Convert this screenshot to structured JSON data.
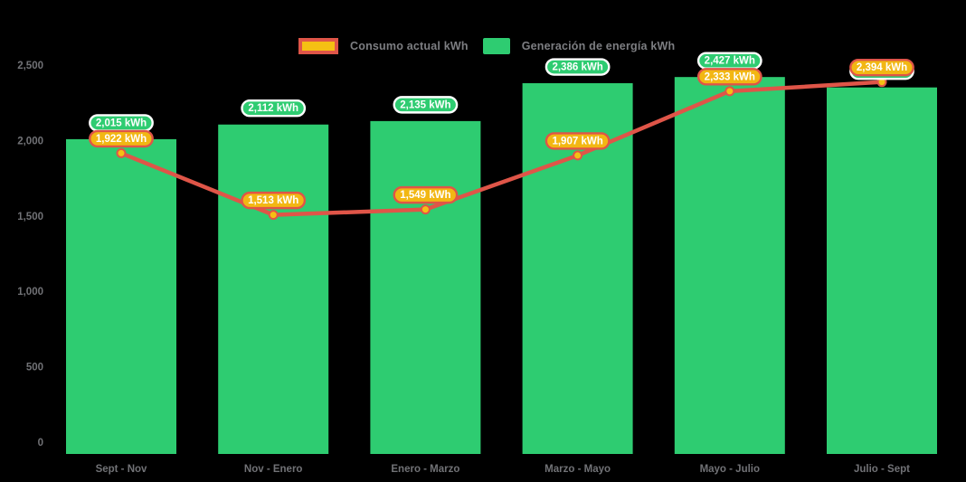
{
  "chart_data": {
    "type": "combo-bar-line",
    "categories": [
      "Sept - Nov",
      "Nov - Enero",
      "Enero - Marzo",
      "Marzo - Mayo",
      "Mayo - Julio",
      "Julio - Sept"
    ],
    "series": [
      {
        "name": "Consumo actual kWh",
        "type": "line",
        "color": "#df5548",
        "marker_fill": "#f5c013",
        "marker_stroke": "#df5548",
        "label_fill": "#f2b713",
        "label_border": "#df5548",
        "values": [
          1922,
          1513,
          1549,
          1907,
          2333,
          2394
        ],
        "labels": [
          "1,922 kWh",
          "1,513 kWh",
          "1,549 kWh",
          "1,907 kWh",
          "2,333 kWh",
          "2,394 kWh"
        ]
      },
      {
        "name": "Generación de energía kWh",
        "type": "bar",
        "color": "#2ecc71",
        "label_fill": "#2ecc71",
        "label_border": "#ffffff",
        "values": [
          2015,
          2112,
          2135,
          2386,
          2427,
          2358
        ],
        "labels": [
          "2,015 kWh",
          "2,112 kWh",
          "2,135 kWh",
          "2,386 kWh",
          "2,427 kWh",
          "2,358 kWh"
        ]
      }
    ],
    "ylim": [
      0,
      2500
    ],
    "yticks": {
      "values": [
        0,
        500,
        1000,
        1500,
        2000,
        2500
      ],
      "labels": [
        "0",
        "500",
        "1,000",
        "1,500",
        "2,000",
        "2,500"
      ]
    },
    "grid": false,
    "legend_position": "top",
    "background": "#000000",
    "axis_text_color": "#717276",
    "legend_text_color": "#7d7e82",
    "label_text_color": "#ffffff"
  }
}
